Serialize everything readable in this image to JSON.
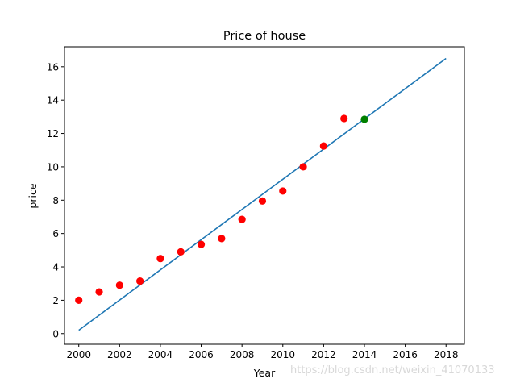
{
  "chart_data": {
    "type": "scatter",
    "title": "Price of house",
    "xlabel": "Year",
    "ylabel": "price",
    "xlim": [
      1999.3,
      2018.9
    ],
    "ylim": [
      -0.64,
      17.2
    ],
    "xticks": [
      2000,
      2002,
      2004,
      2006,
      2008,
      2010,
      2012,
      2014,
      2016,
      2018
    ],
    "yticks": [
      0,
      2,
      4,
      6,
      8,
      10,
      12,
      14,
      16
    ],
    "grid": false,
    "series": [
      {
        "kind": "scatter",
        "color": "#ff0000",
        "x": [
          2000,
          2001,
          2002,
          2003,
          2004,
          2005,
          2006,
          2007,
          2008,
          2009,
          2010,
          2011,
          2012,
          2013
        ],
        "y": [
          2.0,
          2.5,
          2.9,
          3.15,
          4.5,
          4.9,
          5.35,
          5.7,
          6.85,
          7.95,
          8.55,
          10.0,
          11.25,
          12.9
        ]
      },
      {
        "kind": "line",
        "color": "#1f77b4",
        "x": [
          2000,
          2018
        ],
        "y": [
          0.2,
          16.5
        ]
      },
      {
        "kind": "scatter",
        "color": "#008000",
        "x": [
          2014
        ],
        "y": [
          12.85
        ]
      }
    ]
  },
  "watermark": "https://blog.csdn.net/weixin_41070133"
}
